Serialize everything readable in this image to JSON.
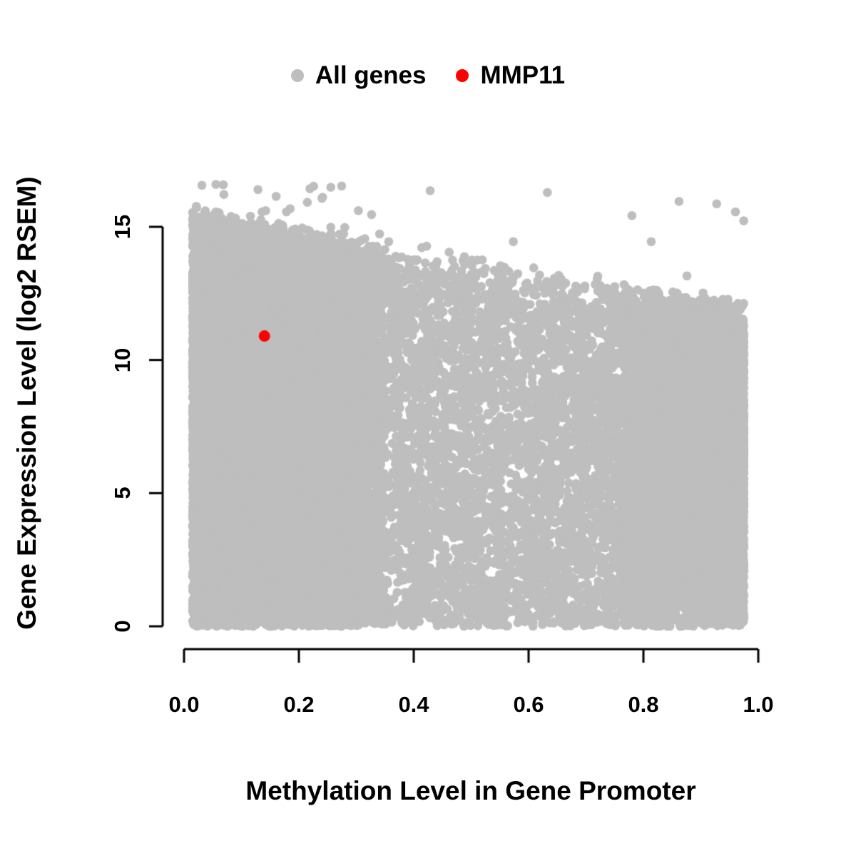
{
  "page": {
    "background": "#FFFFFF"
  },
  "chart_data": {
    "type": "scatter",
    "title": "",
    "xlabel": "Methylation Level in Gene Promoter",
    "ylabel": "Gene Expression Level (log2 RSEM)",
    "xlim": [
      0.0,
      1.0
    ],
    "ylim": [
      0,
      16.6
    ],
    "grid": false,
    "x_ticks": [
      "0.0",
      "0.2",
      "0.4",
      "0.6",
      "0.8",
      "1.0"
    ],
    "x_tick_values": [
      0.0,
      0.2,
      0.4,
      0.6,
      0.8,
      1.0
    ],
    "y_ticks": [
      "0",
      "5",
      "10",
      "15"
    ],
    "y_tick_values": [
      0,
      5,
      10,
      15
    ],
    "axis_color": "#000000",
    "text_color": "#000000",
    "legend": {
      "position": "top-center",
      "items": [
        {
          "label": "All genes",
          "color": "#BEBEBE"
        },
        {
          "label": "MMP11",
          "color": "#FF0000"
        }
      ]
    },
    "series": [
      {
        "name": "All genes",
        "color": "#BEBEBE",
        "kind": "generated-dense-cloud",
        "n": 24000,
        "seed": 20240521,
        "x_min": 0.015,
        "x_max": 0.975,
        "envelope_intercept": 15.3,
        "envelope_slope": -3.7,
        "envelope_noise": 1.2,
        "outlier_fraction": 0.0018,
        "y_max_outlier": 16.6,
        "point_radius": 6.3
      },
      {
        "name": "MMP11",
        "color": "#FF0000",
        "kind": "points",
        "points": [
          [
            0.14,
            10.9
          ]
        ],
        "point_radius": 8
      }
    ]
  }
}
